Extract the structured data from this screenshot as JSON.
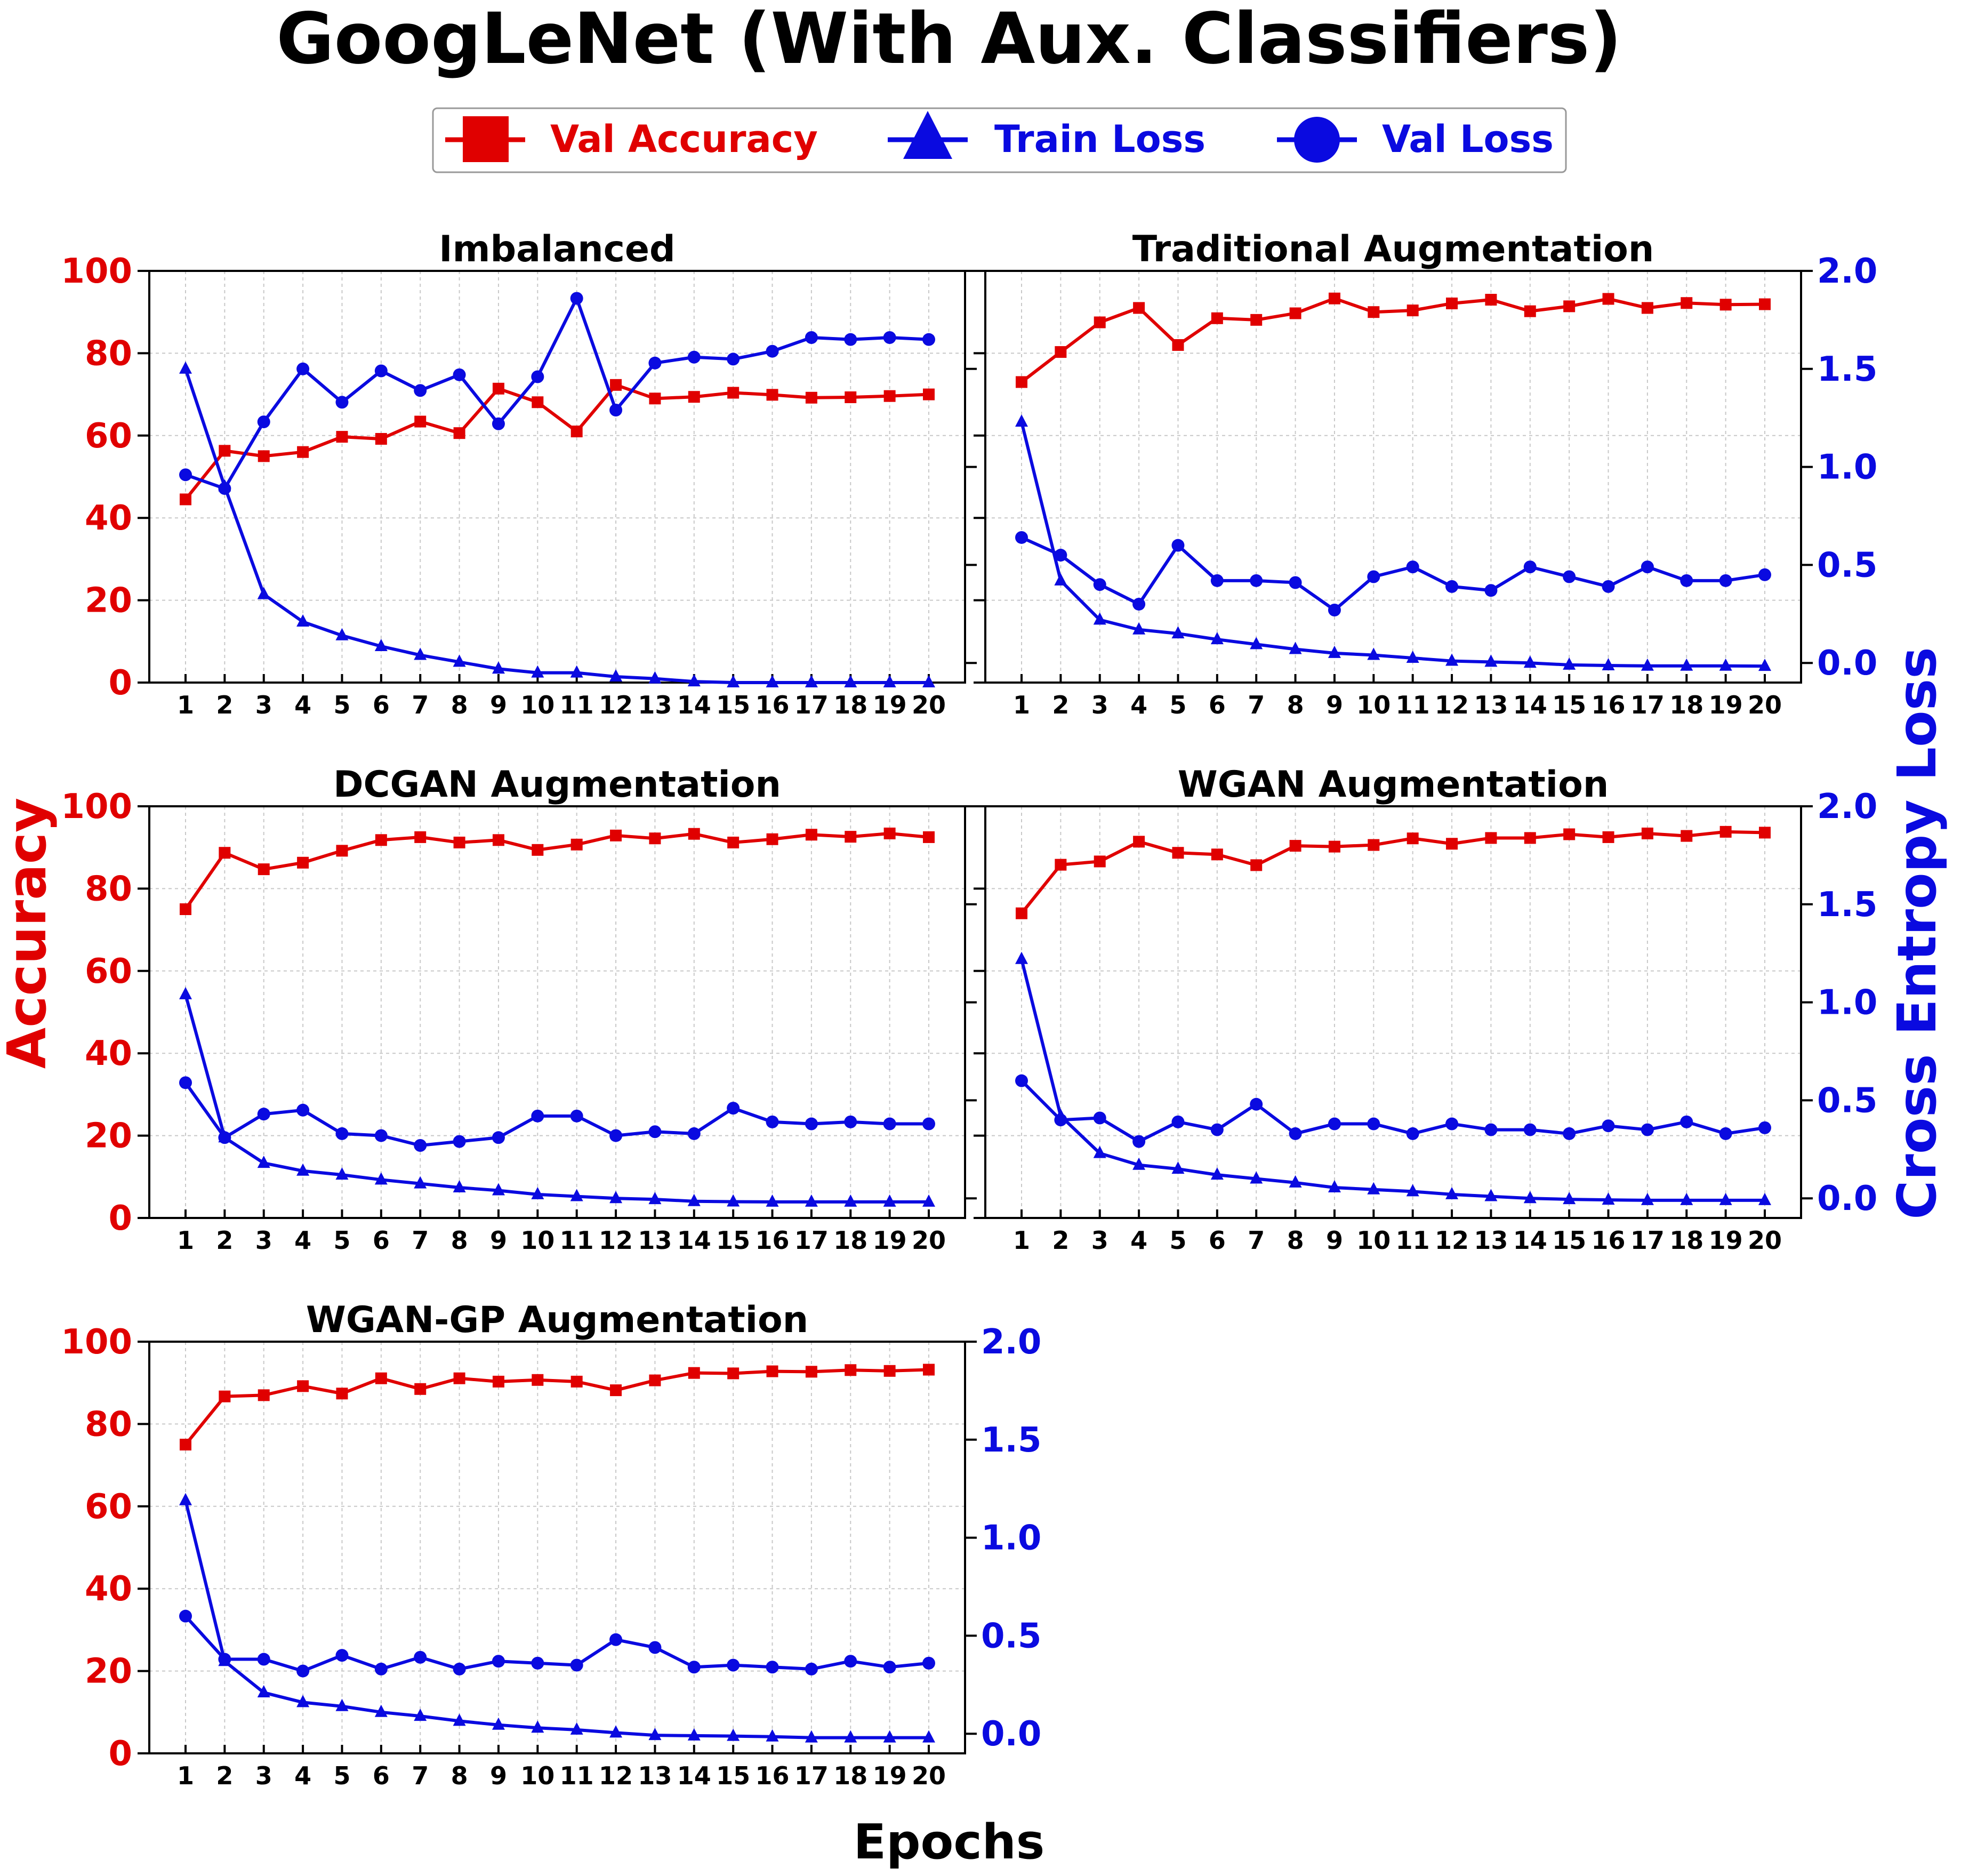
{
  "chart_data": {
    "type": "line",
    "title": "GoogLeNet (With Aux. Classifiers)",
    "xlabel": "Epochs",
    "ylabel_left": "Accuracy",
    "ylabel_right": "Cross Entropy Loss",
    "legend": {
      "placement": "top-center",
      "entries": [
        {
          "label": "Val Accuracy",
          "color": "#e00000",
          "marker": "square"
        },
        {
          "label": "Train Loss",
          "color": "#0a0ae0",
          "marker": "triangle"
        },
        {
          "label": "Val Loss",
          "color": "#0a0ae0",
          "marker": "circle"
        }
      ]
    },
    "x": [
      1,
      2,
      3,
      4,
      5,
      6,
      7,
      8,
      9,
      10,
      11,
      12,
      13,
      14,
      15,
      16,
      17,
      18,
      19,
      20
    ],
    "ylim_left": [
      0,
      100
    ],
    "ylim_right": [
      -0.1,
      2.0
    ],
    "yticks_left": [
      "0",
      "20",
      "40",
      "60",
      "80",
      "100"
    ],
    "yticks_right": [
      "0.0",
      "0.5",
      "1.0",
      "1.5",
      "2.0"
    ],
    "grid": true,
    "colors": {
      "accuracy": "#e00000",
      "loss": "#0a0ae0"
    },
    "subplots": [
      {
        "title": "Imbalanced",
        "val_accuracy": [
          44.5,
          56.3,
          55.0,
          56.0,
          59.7,
          59.2,
          63.4,
          60.6,
          71.4,
          68.1,
          61.0,
          72.3,
          69.0,
          69.4,
          70.4,
          69.9,
          69.2,
          69.3,
          69.6,
          70.0
        ],
        "train_loss": [
          1.5,
          0.9,
          0.35,
          0.21,
          0.14,
          0.085,
          0.04,
          0.005,
          -0.03,
          -0.05,
          -0.05,
          -0.07,
          -0.08,
          -0.095,
          -0.1,
          -0.1,
          -0.1,
          -0.1,
          -0.1,
          -0.1
        ],
        "val_loss": [
          0.96,
          0.89,
          1.23,
          1.5,
          1.33,
          1.49,
          1.39,
          1.47,
          1.22,
          1.46,
          1.86,
          1.29,
          1.53,
          1.56,
          1.55,
          1.59,
          1.66,
          1.65,
          1.66,
          1.65
        ]
      },
      {
        "title": "Traditional Augmentation",
        "val_accuracy": [
          73.0,
          80.3,
          87.5,
          91.0,
          82.0,
          88.5,
          88.1,
          89.7,
          93.3,
          90.0,
          90.4,
          92.1,
          93.0,
          90.2,
          91.4,
          93.2,
          91.0,
          92.2,
          91.8,
          91.9
        ],
        "train_loss": [
          1.23,
          0.42,
          0.22,
          0.17,
          0.15,
          0.12,
          0.095,
          0.07,
          0.05,
          0.04,
          0.025,
          0.01,
          0.005,
          0.0,
          -0.01,
          -0.013,
          -0.015,
          -0.015,
          -0.015,
          -0.016
        ],
        "val_loss": [
          0.64,
          0.55,
          0.4,
          0.3,
          0.6,
          0.42,
          0.42,
          0.41,
          0.27,
          0.44,
          0.49,
          0.39,
          0.37,
          0.49,
          0.44,
          0.39,
          0.49,
          0.42,
          0.42,
          0.45
        ]
      },
      {
        "title": "DCGAN Augmentation",
        "val_accuracy": [
          75.0,
          88.7,
          84.7,
          86.3,
          89.2,
          91.8,
          92.5,
          91.2,
          91.8,
          89.4,
          90.7,
          92.9,
          92.2,
          93.3,
          91.2,
          92.0,
          93.1,
          92.6,
          93.4,
          92.5
        ],
        "train_loss": [
          1.04,
          0.31,
          0.18,
          0.14,
          0.12,
          0.095,
          0.075,
          0.055,
          0.04,
          0.02,
          0.01,
          0.0,
          -0.005,
          -0.015,
          -0.017,
          -0.018,
          -0.018,
          -0.018,
          -0.018,
          -0.018
        ],
        "val_loss": [
          0.59,
          0.31,
          0.43,
          0.45,
          0.33,
          0.32,
          0.27,
          0.29,
          0.31,
          0.42,
          0.42,
          0.32,
          0.34,
          0.33,
          0.46,
          0.39,
          0.38,
          0.39,
          0.38,
          0.38
        ]
      },
      {
        "title": "WGAN Augmentation",
        "val_accuracy": [
          74.0,
          85.8,
          86.6,
          91.4,
          88.7,
          88.3,
          85.7,
          90.4,
          90.2,
          90.6,
          92.2,
          90.9,
          92.3,
          92.3,
          93.2,
          92.5,
          93.4,
          92.8,
          93.8,
          93.6
        ],
        "train_loss": [
          1.22,
          0.42,
          0.23,
          0.17,
          0.15,
          0.12,
          0.1,
          0.08,
          0.055,
          0.045,
          0.035,
          0.02,
          0.01,
          0.0,
          -0.005,
          -0.008,
          -0.01,
          -0.01,
          -0.01,
          -0.01
        ],
        "val_loss": [
          0.6,
          0.4,
          0.41,
          0.29,
          0.39,
          0.35,
          0.48,
          0.33,
          0.38,
          0.38,
          0.33,
          0.38,
          0.35,
          0.35,
          0.33,
          0.37,
          0.35,
          0.39,
          0.33,
          0.36
        ]
      },
      {
        "title": "WGAN-GP Augmentation",
        "val_accuracy": [
          75.0,
          86.7,
          87.0,
          89.2,
          87.4,
          91.1,
          88.5,
          91.1,
          90.3,
          90.7,
          90.3,
          88.2,
          90.6,
          92.4,
          92.3,
          92.8,
          92.7,
          93.1,
          92.9,
          93.2
        ],
        "train_loss": [
          1.19,
          0.37,
          0.21,
          0.16,
          0.14,
          0.11,
          0.09,
          0.065,
          0.045,
          0.03,
          0.02,
          0.005,
          -0.008,
          -0.01,
          -0.012,
          -0.015,
          -0.02,
          -0.02,
          -0.02,
          -0.02
        ],
        "val_loss": [
          0.6,
          0.38,
          0.38,
          0.32,
          0.4,
          0.33,
          0.39,
          0.33,
          0.37,
          0.36,
          0.35,
          0.48,
          0.44,
          0.34,
          0.35,
          0.34,
          0.33,
          0.37,
          0.34,
          0.36
        ]
      }
    ]
  }
}
